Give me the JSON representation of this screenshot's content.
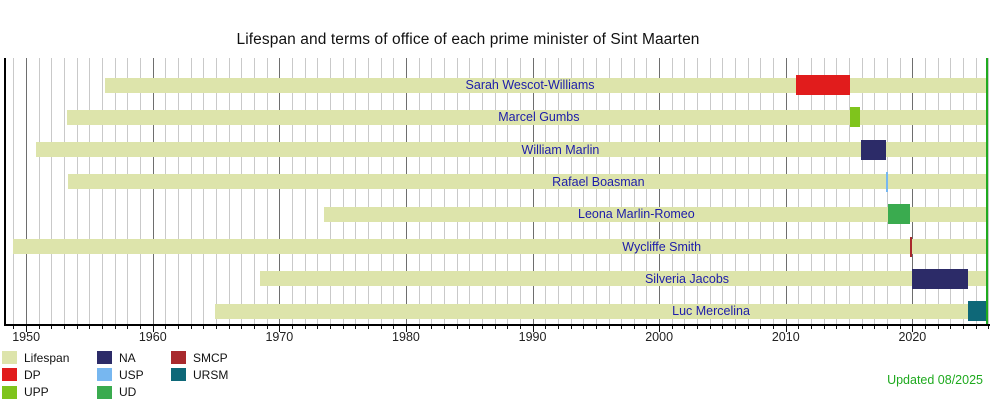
{
  "title": "Lifespan and terms of office of each prime minister of Sint Maarten",
  "updated_label": "Updated 08/2025",
  "colors": {
    "lifespan": "#dde4ab",
    "DP": "#e11c1c",
    "UPP": "#7fc41c",
    "NA": "#2c2b68",
    "USP": "#77b7f0",
    "UD": "#3aab4f",
    "SMCP": "#a8292d",
    "URSM": "#0e6878",
    "present_line": "#1faa1f",
    "updated_text": "#1faa1f",
    "name_text": "#1c1caa",
    "grid_minor": "#c9c9c9",
    "grid_decade": "#6e6e6e"
  },
  "chart_data": {
    "type": "timeline",
    "title": "Lifespan and terms of office of each prime minister of Sint Maarten",
    "x_axis": {
      "min": 1948.25,
      "max": 2026.1,
      "minor_tick_every": 1,
      "decade_ticks": [
        1950,
        1960,
        1970,
        1980,
        1990,
        2000,
        2010,
        2020
      ],
      "present": 2025.8
    },
    "grid": true,
    "ministers": [
      {
        "name": "Sarah Wescot-Williams",
        "born": 1956.2,
        "alive": true,
        "label_center_year": 1989.8,
        "terms": [
          {
            "party": "DP",
            "start": 2010.8,
            "end": 2015.05
          }
        ]
      },
      {
        "name": "Marcel Gumbs",
        "born": 1953.2,
        "alive": true,
        "label_center_year": 1990.5,
        "terms": [
          {
            "party": "UPP",
            "start": 2015.05,
            "end": 2015.85
          }
        ]
      },
      {
        "name": "William Marlin",
        "born": 1950.8,
        "alive": true,
        "label_center_year": 1992.2,
        "terms": [
          {
            "party": "NA",
            "start": 2015.95,
            "end": 2017.95
          }
        ]
      },
      {
        "name": "Rafael Boasman",
        "born": 1953.3,
        "alive": true,
        "label_center_year": 1995.2,
        "terms": [
          {
            "party": "USP",
            "start": 2017.95,
            "end": 2018.11
          }
        ]
      },
      {
        "name": "Leona Marlin-Romeo",
        "born": 1973.5,
        "alive": true,
        "label_center_year": 1998.2,
        "terms": [
          {
            "party": "UD",
            "start": 2018.11,
            "end": 2019.8
          }
        ]
      },
      {
        "name": "Wycliffe Smith",
        "born": 1949.0,
        "alive": true,
        "label_center_year": 2000.2,
        "terms": [
          {
            "party": "SMCP",
            "start": 2019.8,
            "end": 2019.97
          }
        ]
      },
      {
        "name": "Silveria Jacobs",
        "born": 1968.5,
        "alive": true,
        "label_center_year": 2002.2,
        "terms": [
          {
            "party": "NA",
            "start": 2019.97,
            "end": 2024.4
          }
        ]
      },
      {
        "name": "Luc Mercelina",
        "born": 1964.9,
        "alive": true,
        "label_center_year": 2004.1,
        "terms": [
          {
            "party": "URSM",
            "start": 2024.4,
            "end": 2025.8
          }
        ]
      }
    ]
  },
  "legend": {
    "columns": [
      [
        {
          "label": "Lifespan",
          "color_key": "lifespan"
        },
        {
          "label": "DP",
          "color_key": "DP"
        },
        {
          "label": "UPP",
          "color_key": "UPP"
        }
      ],
      [
        {
          "label": "NA",
          "color_key": "NA"
        },
        {
          "label": "USP",
          "color_key": "USP"
        },
        {
          "label": "UD",
          "color_key": "UD"
        }
      ],
      [
        {
          "label": "SMCP",
          "color_key": "SMCP"
        },
        {
          "label": "URSM",
          "color_key": "URSM"
        }
      ]
    ]
  }
}
